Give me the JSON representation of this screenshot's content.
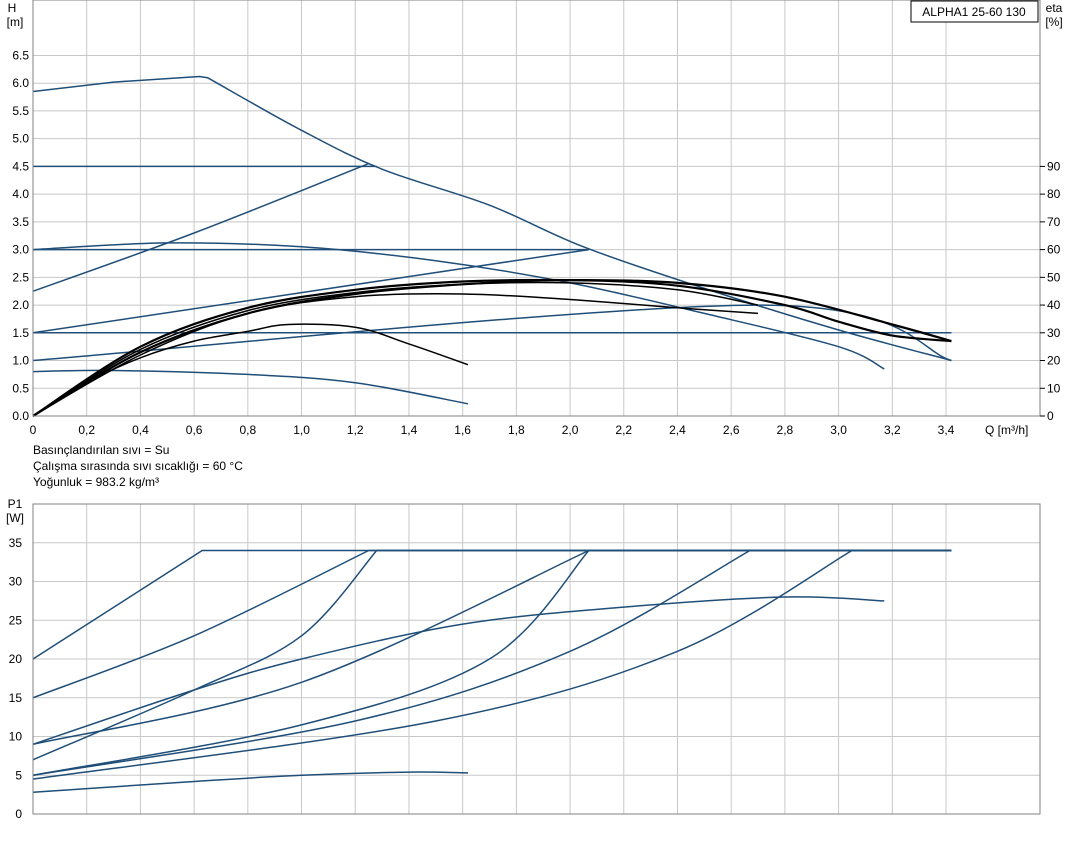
{
  "product_label": "ALPHA1 25-60 130",
  "fluid_info": [
    "Basınçlandırılan sıvı = Su",
    "Çalışma sırasında sıvı sıcaklığı = 60 °C",
    "Yoğunluk = 983.2 kg/m³"
  ],
  "colors": {
    "curve": "#1f4e79",
    "eta_curve": "#000000",
    "grid": "#c8c8c8",
    "frame": "#808080"
  },
  "chart_data": [
    {
      "type": "line",
      "name": "H-Q",
      "ylabel": "H",
      "yunit": "[m]",
      "xlabel": "Q [m³/h]",
      "y2label": "eta",
      "y2unit": "[%]",
      "xlim": [
        0,
        3.75
      ],
      "ylim": [
        0,
        7.5
      ],
      "y2lim": [
        0,
        150
      ],
      "grid": true,
      "xticks": [
        "0",
        "0,2",
        "0,4",
        "0,6",
        "0,8",
        "1,0",
        "1,2",
        "1,4",
        "1,6",
        "1,8",
        "2,0",
        "2,2",
        "2,4",
        "2,6",
        "2,8",
        "3,0",
        "3,2",
        "3,4"
      ],
      "yticks": [
        "0.0",
        "0.5",
        "1.0",
        "1.5",
        "2.0",
        "2.5",
        "3.0",
        "3.5",
        "4.0",
        "4.5",
        "5.0",
        "5.5",
        "6.0",
        "6.5"
      ],
      "y2ticks": [
        "0",
        "10",
        "20",
        "30",
        "40",
        "50",
        "60",
        "70",
        "80",
        "90"
      ],
      "series": [
        {
          "axis": "H",
          "points": [
            [
              0,
              5.85
            ],
            [
              0.3,
              6.02
            ],
            [
              0.62,
              6.12
            ],
            [
              0.65,
              6.1
            ],
            [
              1.0,
              5.15
            ],
            [
              1.3,
              4.45
            ],
            [
              1.7,
              3.8
            ],
            [
              2.05,
              3.05
            ],
            [
              2.5,
              2.3
            ],
            [
              3.0,
              1.55
            ],
            [
              3.42,
              1.0
            ]
          ]
        },
        {
          "axis": "H",
          "points": [
            [
              0,
              4.5
            ],
            [
              1.28,
              4.5
            ]
          ]
        },
        {
          "axis": "H",
          "points": [
            [
              0,
              2.25
            ],
            [
              0.6,
              3.3
            ],
            [
              1.25,
              4.55
            ]
          ]
        },
        {
          "axis": "H",
          "points": [
            [
              0,
              3.0
            ],
            [
              2.07,
              3.0
            ]
          ]
        },
        {
          "axis": "H",
          "points": [
            [
              0,
              1.5
            ],
            [
              2.07,
              3.0
            ]
          ]
        },
        {
          "axis": "H",
          "points": [
            [
              0,
              1.5
            ],
            [
              3.42,
              1.5
            ]
          ]
        },
        {
          "axis": "H",
          "points": [
            [
              0,
              1.0
            ],
            [
              2.7,
              2.0
            ],
            [
              3.42,
              1.0
            ]
          ]
        },
        {
          "axis": "H",
          "points": [
            [
              0,
              3.0
            ],
            [
              0.5,
              3.12
            ],
            [
              1.0,
              3.05
            ],
            [
              1.5,
              2.8
            ],
            [
              2.0,
              2.4
            ],
            [
              2.5,
              1.85
            ],
            [
              3.0,
              1.25
            ],
            [
              3.17,
              0.85
            ]
          ]
        },
        {
          "axis": "H",
          "points": [
            [
              0,
              0.8
            ],
            [
              0.3,
              0.82
            ],
            [
              0.8,
              0.75
            ],
            [
              1.2,
              0.6
            ],
            [
              1.62,
              0.22
            ]
          ]
        },
        {
          "axis": "eta",
          "points": [
            [
              0,
              0
            ],
            [
              0.2,
              12
            ],
            [
              0.4,
              21
            ],
            [
              0.6,
              27
            ],
            [
              0.8,
              30.5
            ],
            [
              0.95,
              33
            ],
            [
              1.2,
              32
            ],
            [
              1.4,
              26
            ],
            [
              1.62,
              18.5
            ]
          ]
        },
        {
          "axis": "eta",
          "points": [
            [
              0,
              0
            ],
            [
              0.4,
              23
            ],
            [
              0.8,
              37
            ],
            [
              1.2,
              44
            ],
            [
              1.6,
              47.5
            ],
            [
              2.0,
              49
            ],
            [
              2.4,
              47
            ],
            [
              2.8,
              40
            ],
            [
              3.0,
              34
            ],
            [
              3.2,
              29
            ],
            [
              3.42,
              27
            ]
          ]
        },
        {
          "axis": "eta",
          "points": [
            [
              0,
              0
            ],
            [
              0.4,
              24
            ],
            [
              0.8,
              38
            ],
            [
              1.2,
              44.5
            ],
            [
              1.6,
              47.5
            ],
            [
              2.0,
              48
            ],
            [
              2.4,
              45.5
            ],
            [
              2.7,
              40
            ]
          ]
        },
        {
          "axis": "eta",
          "points": [
            [
              0,
              0
            ],
            [
              0.4,
              22
            ],
            [
              0.8,
              37
            ],
            [
              1.2,
              43
            ],
            [
              1.6,
              44
            ],
            [
              2.0,
              42
            ],
            [
              2.4,
              39
            ],
            [
              2.7,
              37
            ]
          ]
        },
        {
          "axis": "eta",
          "points": [
            [
              0,
              0
            ],
            [
              0.4,
              25
            ],
            [
              0.8,
              39
            ],
            [
              1.2,
              45.5
            ],
            [
              1.6,
              48.5
            ],
            [
              2.0,
              49
            ],
            [
              2.4,
              48
            ],
            [
              2.8,
              43
            ],
            [
              3.2,
              33
            ],
            [
              3.42,
              27
            ]
          ]
        }
      ]
    },
    {
      "type": "line",
      "name": "P1-Q",
      "ylabel": "P1",
      "yunit": "[W]",
      "xlim": [
        0,
        3.75
      ],
      "ylim": [
        0,
        40
      ],
      "grid": true,
      "yticks": [
        "0",
        "5",
        "10",
        "15",
        "20",
        "25",
        "30",
        "35"
      ],
      "series": [
        {
          "points": [
            [
              0,
              20
            ],
            [
              0.63,
              34
            ],
            [
              3.42,
              34
            ]
          ]
        },
        {
          "points": [
            [
              0,
              15
            ],
            [
              0.6,
              23
            ],
            [
              1.25,
              34
            ]
          ]
        },
        {
          "points": [
            [
              0,
              7
            ],
            [
              0.6,
              16
            ],
            [
              1.0,
              23
            ],
            [
              1.28,
              34
            ]
          ]
        },
        {
          "points": [
            [
              0,
              9
            ],
            [
              1.0,
              17
            ],
            [
              2.07,
              34
            ]
          ]
        },
        {
          "points": [
            [
              0,
              5
            ],
            [
              1.0,
              11.5
            ],
            [
              1.7,
              20
            ],
            [
              2.07,
              34
            ]
          ]
        },
        {
          "points": [
            [
              0,
              5
            ],
            [
              1.2,
              12
            ],
            [
              2.0,
              21
            ],
            [
              2.67,
              34
            ]
          ]
        },
        {
          "points": [
            [
              0,
              4.5
            ],
            [
              1.5,
              12
            ],
            [
              2.4,
              21
            ],
            [
              3.05,
              34
            ]
          ]
        },
        {
          "points": [
            [
              0,
              9
            ],
            [
              0.6,
              16
            ],
            [
              1.0,
              20
            ],
            [
              1.6,
              24.5
            ],
            [
              2.2,
              26.7
            ],
            [
              2.8,
              28
            ],
            [
              3.17,
              27.5
            ]
          ]
        },
        {
          "points": [
            [
              0,
              2.8
            ],
            [
              0.6,
              4.2
            ],
            [
              1.0,
              5.0
            ],
            [
              1.4,
              5.4
            ],
            [
              1.62,
              5.3
            ]
          ]
        }
      ]
    }
  ]
}
